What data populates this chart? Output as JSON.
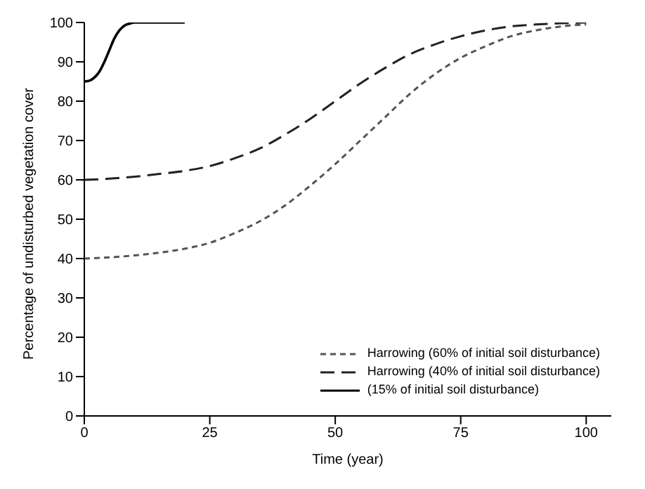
{
  "chart_data": {
    "type": "line",
    "xlabel": "Time (year)",
    "ylabel": "Percentage of undisturbed vegetation cover",
    "xlim": [
      0,
      105
    ],
    "xticks": [
      0,
      25,
      50,
      75,
      100
    ],
    "ylim": [
      0,
      100
    ],
    "yticks": [
      0,
      10,
      20,
      30,
      40,
      50,
      60,
      70,
      80,
      90,
      100
    ],
    "legend": "bottom right",
    "grid": false,
    "marker": "none",
    "series": [
      {
        "name": "Harrowing (60% of initial soil disturbance)",
        "color": "#555555",
        "line_style": "dotted",
        "x": [
          0,
          5,
          10,
          15,
          20,
          25,
          30,
          35,
          40,
          45,
          50,
          55,
          60,
          65,
          70,
          75,
          80,
          85,
          90,
          95,
          100
        ],
        "values": [
          40,
          40.3,
          40.8,
          41.5,
          42.5,
          44,
          46.5,
          49.5,
          53.5,
          58.5,
          64,
          70,
          76,
          82,
          87,
          91,
          94,
          96.5,
          98,
          99,
          99.5
        ]
      },
      {
        "name": "Harrowing (40% of initial soil disturbance)",
        "color": "#222222",
        "line_style": "dashed",
        "x": [
          0,
          5,
          10,
          15,
          20,
          25,
          30,
          35,
          40,
          45,
          50,
          55,
          60,
          65,
          70,
          75,
          80,
          85,
          90,
          95,
          100
        ],
        "values": [
          60,
          60.3,
          60.8,
          61.5,
          62.3,
          63.5,
          65.5,
          68,
          71.5,
          75.5,
          80,
          84.5,
          88.5,
          92,
          94.5,
          96.5,
          98,
          99,
          99.5,
          99.8,
          100
        ]
      },
      {
        "name": "(15% of initial soil disturbance)",
        "color": "#000000",
        "line_style": "solid",
        "x": [
          0,
          1,
          2,
          3,
          4,
          5,
          6,
          7,
          8,
          9,
          10,
          12,
          15,
          20
        ],
        "values": [
          85,
          85.2,
          86,
          87.5,
          90,
          93,
          96,
          98,
          99.2,
          99.7,
          100,
          100,
          100,
          100
        ]
      }
    ]
  }
}
